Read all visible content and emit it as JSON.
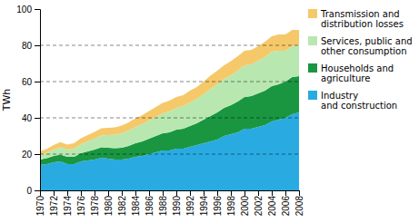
{
  "chart_data": {
    "type": "area",
    "stacked": true,
    "y_label": "TWh",
    "x": [
      1970,
      1971,
      1972,
      1973,
      1974,
      1975,
      1976,
      1977,
      1978,
      1979,
      1980,
      1981,
      1982,
      1983,
      1984,
      1985,
      1986,
      1987,
      1988,
      1989,
      1990,
      1991,
      1992,
      1993,
      1994,
      1995,
      1996,
      1997,
      1998,
      1999,
      2000,
      2001,
      2002,
      2003,
      2004,
      2005,
      2006,
      2007,
      2008
    ],
    "series": [
      {
        "name": "Industry\nand construction",
        "color": "#29abe2",
        "values": [
          14,
          14.5,
          15.5,
          16,
          14.5,
          14.5,
          16,
          16.5,
          17,
          18,
          17.5,
          17,
          17,
          17.5,
          18.5,
          19,
          20,
          21,
          22,
          22,
          23,
          23,
          24,
          25,
          26,
          27,
          28,
          30,
          31,
          32,
          34,
          34,
          35,
          36,
          38,
          39,
          40,
          42,
          43
        ]
      },
      {
        "name": "Households and\nagriculture",
        "color": "#1a9641",
        "values": [
          3,
          3.2,
          3.5,
          3.8,
          4,
          4,
          4.5,
          5,
          5.5,
          5.8,
          6,
          6.2,
          6.5,
          7,
          7.5,
          8,
          8.5,
          9,
          9.5,
          10,
          10.5,
          11,
          11.5,
          12,
          13,
          14,
          15,
          15.5,
          16,
          17,
          17.5,
          18,
          18.5,
          19,
          19.5,
          19.5,
          20,
          20.5,
          20
        ]
      },
      {
        "name": "Services, public and\nother consumption",
        "color": "#b8e8b0",
        "values": [
          2.5,
          3,
          3.5,
          4,
          4,
          4.5,
          5,
          5.5,
          6,
          6.5,
          7,
          7.5,
          8,
          8.5,
          9,
          9.5,
          10,
          10.5,
          11,
          11.5,
          12,
          12.5,
          13,
          13.5,
          14,
          15,
          15.5,
          16,
          16.5,
          17,
          17.5,
          17.5,
          18,
          18.5,
          19,
          18.5,
          17,
          17,
          17
        ]
      },
      {
        "name": "Transmission and\ndistribution losses",
        "color": "#f5c96a",
        "values": [
          2,
          2.2,
          2.5,
          2.8,
          2.8,
          3,
          3.2,
          3.5,
          3.8,
          4,
          4,
          4,
          4.2,
          4.5,
          4.8,
          5,
          5.2,
          5.5,
          5.8,
          6,
          6,
          6,
          6.5,
          6.5,
          7,
          7.2,
          7.5,
          7.5,
          7.8,
          8,
          8,
          8,
          8,
          8.5,
          8.5,
          9,
          9,
          9,
          8.5
        ]
      }
    ],
    "xlim": [
      1970,
      2008
    ],
    "xticks": [
      1970,
      1972,
      1974,
      1976,
      1978,
      1980,
      1982,
      1984,
      1986,
      1988,
      1990,
      1992,
      1994,
      1996,
      1998,
      2000,
      2002,
      2004,
      2006,
      2008
    ],
    "ylim": [
      0,
      100
    ],
    "yticks": [
      0,
      20,
      40,
      60,
      80,
      100
    ],
    "grid": true,
    "legend": "right"
  }
}
